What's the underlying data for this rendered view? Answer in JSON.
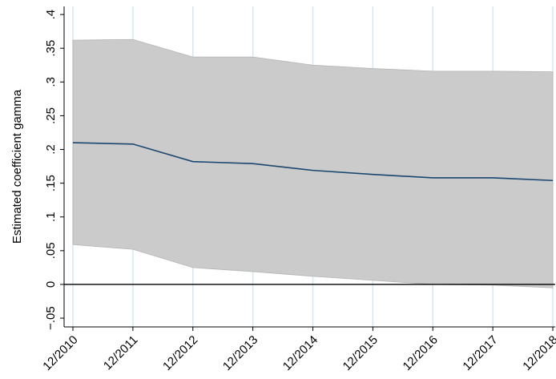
{
  "chart_data": {
    "type": "band-line",
    "y_label": "Estimated coefficient gamma",
    "categories": [
      "12/2010",
      "12/2011",
      "12/2012",
      "12/2013",
      "12/2014",
      "12/2015",
      "12/2016",
      "12/2017",
      "12/2018"
    ],
    "values": [
      0.21,
      0.208,
      0.182,
      0.179,
      0.169,
      0.163,
      0.158,
      0.158,
      0.154
    ],
    "ci_upper": [
      0.362,
      0.363,
      0.337,
      0.337,
      0.325,
      0.32,
      0.316,
      0.316,
      0.315
    ],
    "ci_lower": [
      0.059,
      0.052,
      0.025,
      0.019,
      0.012,
      0.006,
      0.0,
      -0.001,
      -0.005
    ],
    "line_color": "#1a476f",
    "band_color": "#cbcbcb",
    "grid_color": "#d5e8ef",
    "grid": true,
    "yline": 0,
    "ylim": [
      -0.063,
      0.412
    ],
    "yticks": [
      {
        "value": -0.05,
        "label": "−.05"
      },
      0,
      {
        "value": 0.05,
        "label": ".05"
      },
      {
        "value": 0.1,
        "label": ".1"
      },
      {
        "value": 0.15,
        "label": ".15"
      },
      {
        "value": 0.2,
        "label": ".2"
      },
      {
        "value": 0.25,
        "label": ".25"
      },
      {
        "value": 0.3,
        "label": ".3"
      },
      {
        "value": 0.35,
        "label": ".35"
      },
      {
        "value": 0.4,
        "label": ".4"
      }
    ]
  }
}
